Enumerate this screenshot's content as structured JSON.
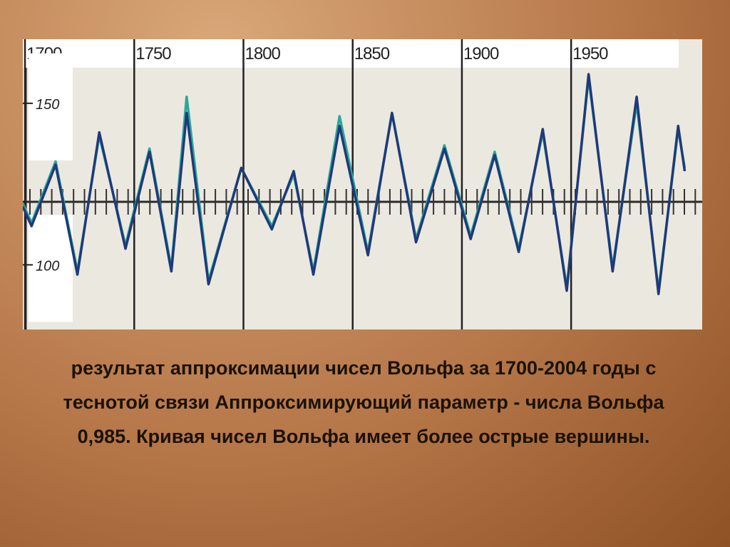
{
  "chart_data": {
    "type": "line",
    "x": [
      1699,
      1703,
      1714,
      1724,
      1734,
      1746,
      1757,
      1767,
      1774,
      1784,
      1799,
      1813,
      1823,
      1832,
      1844,
      1857,
      1868,
      1879,
      1892,
      1904,
      1915,
      1926,
      1937,
      1948,
      1958,
      1969,
      1980,
      1990,
      1999,
      2002
    ],
    "series": [
      {
        "color": "#2aa89a",
        "values": [
          119,
          113,
          132,
          98,
          140,
          106,
          136,
          99,
          152,
          95,
          130,
          112,
          128,
          98,
          146,
          104,
          147,
          108,
          137,
          109,
          135,
          105,
          141,
          93,
          158,
          99,
          150,
          92,
          142,
          130
        ]
      },
      {
        "color": "#1f3a78",
        "values": [
          118,
          112,
          131,
          97,
          141,
          105,
          135,
          98,
          147,
          94,
          130,
          111,
          129,
          97,
          143,
          103,
          147,
          107,
          136,
          108,
          134,
          104,
          142,
          92,
          159,
          98,
          152,
          91,
          143,
          129
        ]
      }
    ],
    "xlim": [
      1699,
      2010
    ],
    "xticks": [
      1700,
      1750,
      1800,
      1850,
      1900,
      1950
    ],
    "ylim": [
      80,
      161
    ],
    "yticks": [
      150,
      100
    ],
    "grid": true
  },
  "caption": "результат аппроксимации чисел Вольфа за 1700-2004 годы с теснотой связи Аппроксимирующий параметр - числа Вольфа 0,985. Кривая чисел Вольфа имеет более острые вершины."
}
